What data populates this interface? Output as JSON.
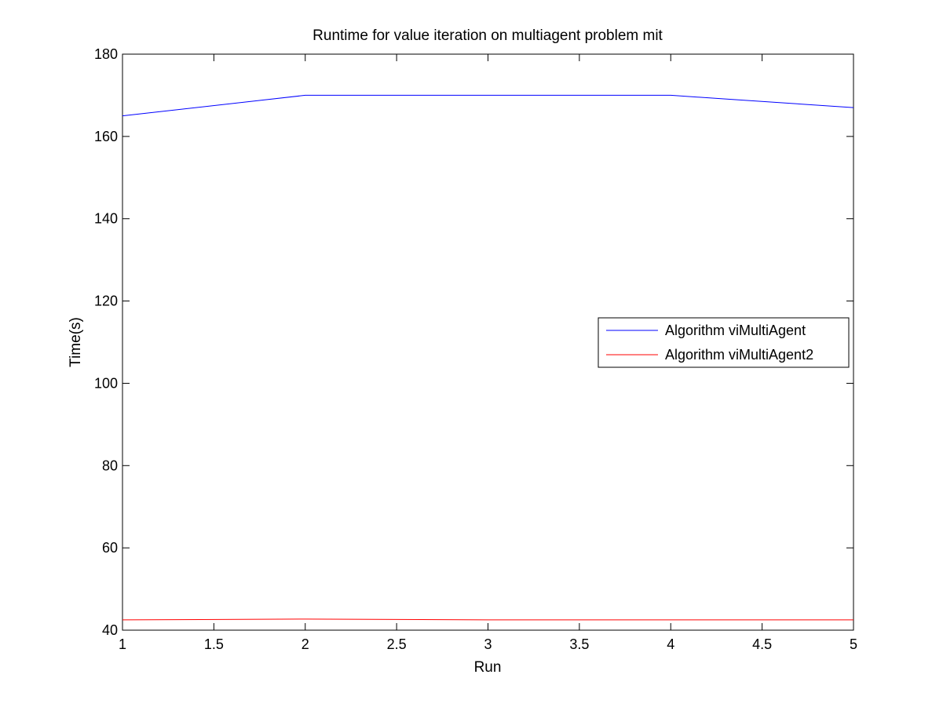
{
  "chart_data": {
    "type": "line",
    "title": "Runtime for value iteration on multiagent problem mit",
    "xlabel": "Run",
    "ylabel": "Time(s)",
    "xlim": [
      1,
      5
    ],
    "ylim": [
      40,
      180
    ],
    "xticks": [
      1,
      1.5,
      2,
      2.5,
      3,
      3.5,
      4,
      4.5,
      5
    ],
    "xtick_labels": [
      "1",
      "1.5",
      "2",
      "2.5",
      "3",
      "3.5",
      "4",
      "4.5",
      "5"
    ],
    "yticks": [
      40,
      60,
      80,
      100,
      120,
      140,
      160,
      180
    ],
    "ytick_labels": [
      "40",
      "60",
      "80",
      "100",
      "120",
      "140",
      "160",
      "180"
    ],
    "grid": false,
    "legend_position": "right",
    "x": [
      1,
      2,
      3,
      4,
      5
    ],
    "series": [
      {
        "name": "Algorithm viMultiAgent",
        "values": [
          165,
          170,
          170,
          170,
          167
        ],
        "color": "#0000ff"
      },
      {
        "name": "Algorithm viMultiAgent2",
        "values": [
          42.5,
          42.7,
          42.5,
          42.5,
          42.5
        ],
        "color": "#ff0000"
      }
    ]
  }
}
